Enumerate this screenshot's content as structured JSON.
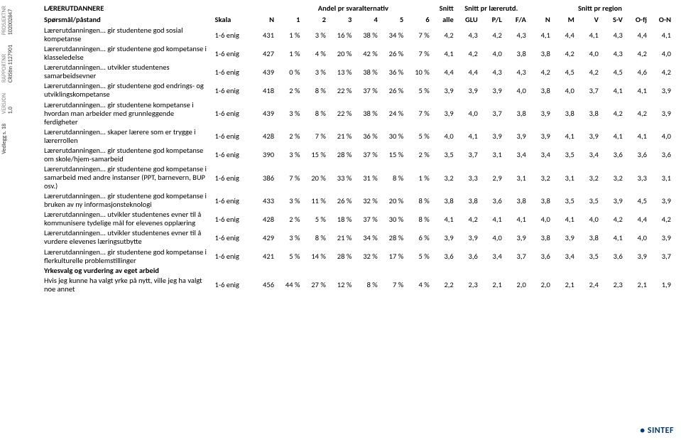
{
  "rail": {
    "proj_hdr": "PROSJEKTNR",
    "proj_val": "102002847",
    "rep_hdr": "RAPPORTNR",
    "rep_val": "CRIStin 1127901",
    "ver_hdr": "VERSJON",
    "ver_val": "1.0",
    "appx": "Vedlegg s. 18"
  },
  "headers": {
    "main_label": "LÆRERUTDANNERE",
    "q_label": "Spørsmål/påstand",
    "scale": "Skala",
    "N": "N",
    "group_andel": "Andel pr svaralternativ",
    "c1": "1",
    "c2": "2",
    "c3": "3",
    "c4": "4",
    "c5": "5",
    "c6": "6",
    "snitt_alle": "Snitt\nalle",
    "group_laererutd": "Snitt pr lærerutd.",
    "glu": "GLU",
    "pl": "P/L",
    "fa": "F/A",
    "group_region": "Snitt pr region",
    "rN": "N",
    "rM": "M",
    "rV": "V",
    "rSV": "S-V",
    "rOfj": "O-fj",
    "rON": "O-N"
  },
  "rows": [
    {
      "label": "Lærerutdanningen... gir studentene god sosial kompetanse",
      "scale": "1-6 enig",
      "n": "431",
      "p": [
        "1 %",
        "3 %",
        "16 %",
        "38 %",
        "34 %",
        "7 %"
      ],
      "alle": "4,2",
      "lu": [
        "4,3",
        "4,2",
        "4,3"
      ],
      "reg": [
        "4,1",
        "4,4",
        "4,1",
        "4,3",
        "4,4",
        "4,1"
      ]
    },
    {
      "label": "Lærerutdanningen... gir studentene god kompetanse i klasseledelse",
      "scale": "1-6 enig",
      "n": "427",
      "p": [
        "1 %",
        "4 %",
        "20 %",
        "42 %",
        "26 %",
        "7 %"
      ],
      "alle": "4,1",
      "lu": [
        "4,2",
        "4,0",
        "3,8"
      ],
      "reg": [
        "3,8",
        "4,2",
        "4,0",
        "4,3",
        "4,2",
        "4,0"
      ]
    },
    {
      "label": "Lærerutdanningen... utvikler studentenes samarbeidsevner",
      "scale": "1-6 enig",
      "n": "439",
      "p": [
        "0 %",
        "3 %",
        "13 %",
        "38 %",
        "36 %",
        "10 %"
      ],
      "alle": "4,4",
      "lu": [
        "4,4",
        "4,3",
        "4,3"
      ],
      "reg": [
        "4,2",
        "4,5",
        "4,2",
        "4,5",
        "4,6",
        "4,2"
      ]
    },
    {
      "label": "Lærerutdanningen... gir studentene god endrings- og utviklingskompetanse",
      "scale": "1-6 enig",
      "n": "418",
      "p": [
        "2 %",
        "8 %",
        "22 %",
        "37 %",
        "26 %",
        "5 %"
      ],
      "alle": "3,9",
      "lu": [
        "3,9",
        "3,9",
        "4,0"
      ],
      "reg": [
        "3,8",
        "4,0",
        "3,7",
        "4,1",
        "4,1",
        "3,9"
      ]
    },
    {
      "label": "Lærerutdanningen... gir studentene kompetanse i hvordan man arbeider med grunnleggende ferdigheter",
      "scale": "1-6 enig",
      "n": "439",
      "p": [
        "3 %",
        "8 %",
        "22 %",
        "38 %",
        "24 %",
        "7 %"
      ],
      "alle": "3,9",
      "lu": [
        "4,0",
        "3,7",
        "3,8"
      ],
      "reg": [
        "3,9",
        "3,8",
        "3,8",
        "4,2",
        "4,2",
        "3,9"
      ]
    },
    {
      "label": "Lærerutdanningen... skaper lærere som er trygge i lærerrollen",
      "scale": "1-6 enig",
      "n": "428",
      "p": [
        "2 %",
        "7 %",
        "21 %",
        "36 %",
        "30 %",
        "5 %"
      ],
      "alle": "4,0",
      "lu": [
        "4,1",
        "3,9",
        "3,9"
      ],
      "reg": [
        "3,9",
        "4,1",
        "3,9",
        "4,1",
        "4,1",
        "4,0"
      ]
    },
    {
      "label": "Lærerutdanningen... gir studentene god kompetanse om skole/hjem-samarbeid",
      "scale": "1-6 enig",
      "n": "390",
      "p": [
        "3 %",
        "15 %",
        "28 %",
        "37 %",
        "15 %",
        "2 %"
      ],
      "alle": "3,5",
      "lu": [
        "3,7",
        "3,1",
        "3,4"
      ],
      "reg": [
        "3,4",
        "3,5",
        "3,4",
        "3,6",
        "3,6",
        "3,6"
      ]
    },
    {
      "label": "Lærerutdanningen... gir studentene god kompetanse i samarbeid med andre instanser (PPT, barnevern, BUP osv.)",
      "scale": "1-6 enig",
      "n": "386",
      "p": [
        "7 %",
        "20 %",
        "33 %",
        "31 %",
        "8 %",
        "1 %"
      ],
      "alle": "3,2",
      "lu": [
        "3,3",
        "2,9",
        "3,1"
      ],
      "reg": [
        "3,2",
        "3,1",
        "3,2",
        "3,2",
        "3,3",
        "3,1"
      ]
    },
    {
      "label": "Lærerutdanningen... gir studentene god kompetanse i bruken av ny informasjonsteknologi",
      "scale": "1-6 enig",
      "n": "433",
      "p": [
        "3 %",
        "11 %",
        "26 %",
        "32 %",
        "20 %",
        "8 %"
      ],
      "alle": "3,8",
      "lu": [
        "3,8",
        "3,6",
        "3,8"
      ],
      "reg": [
        "3,8",
        "3,5",
        "3,5",
        "3,9",
        "4,5",
        "3,9"
      ]
    },
    {
      "label": "Lærerutdanningen... utvikler studentenes evner til å kommunisere tydelige mål for elevenes opplæring",
      "scale": "1-6 enig",
      "n": "428",
      "p": [
        "2 %",
        "5 %",
        "18 %",
        "37 %",
        "30 %",
        "8 %"
      ],
      "alle": "4,1",
      "lu": [
        "4,2",
        "4,1",
        "4,1"
      ],
      "reg": [
        "4,0",
        "4,1",
        "4,0",
        "4,2",
        "4,4",
        "4,2"
      ]
    },
    {
      "label": "Lærerutdanningen... utvikler studentenes evner til å vurdere elevenes læringsutbytte",
      "scale": "1-6 enig",
      "n": "429",
      "p": [
        "3 %",
        "8 %",
        "21 %",
        "34 %",
        "28 %",
        "6 %"
      ],
      "alle": "3,9",
      "lu": [
        "3,9",
        "4,0",
        "3,9"
      ],
      "reg": [
        "3,8",
        "3,9",
        "3,8",
        "4,1",
        "4,0",
        "3,9"
      ]
    },
    {
      "label": "Lærerutdanningen... gir studentene god kompetanse i flerkulturelle problemstillinger",
      "scale": "1-6 enig",
      "n": "421",
      "p": [
        "5 %",
        "14 %",
        "28 %",
        "32 %",
        "17 %",
        "5 %"
      ],
      "alle": "3,6",
      "lu": [
        "3,6",
        "3,4",
        "3,7"
      ],
      "reg": [
        "3,6",
        "3,4",
        "3,5",
        "3,6",
        "3,9",
        "3,7"
      ]
    }
  ],
  "section2": {
    "title": "Yrkesvalg og vurdering av eget arbeid",
    "row": {
      "label": "Hvis jeg kunne ha valgt yrke på nytt, ville jeg ha valgt noe annet",
      "scale": "1-6 enig",
      "n": "456",
      "p": [
        "44 %",
        "27 %",
        "12 %",
        "8 %",
        "7 %",
        "4 %"
      ],
      "alle": "2,2",
      "lu": [
        "2,3",
        "2,1",
        "2,0"
      ],
      "reg": [
        "2,0",
        "2,1",
        "2,4",
        "2,3",
        "2,1",
        "1,9"
      ]
    }
  },
  "logo": "SINTEF"
}
